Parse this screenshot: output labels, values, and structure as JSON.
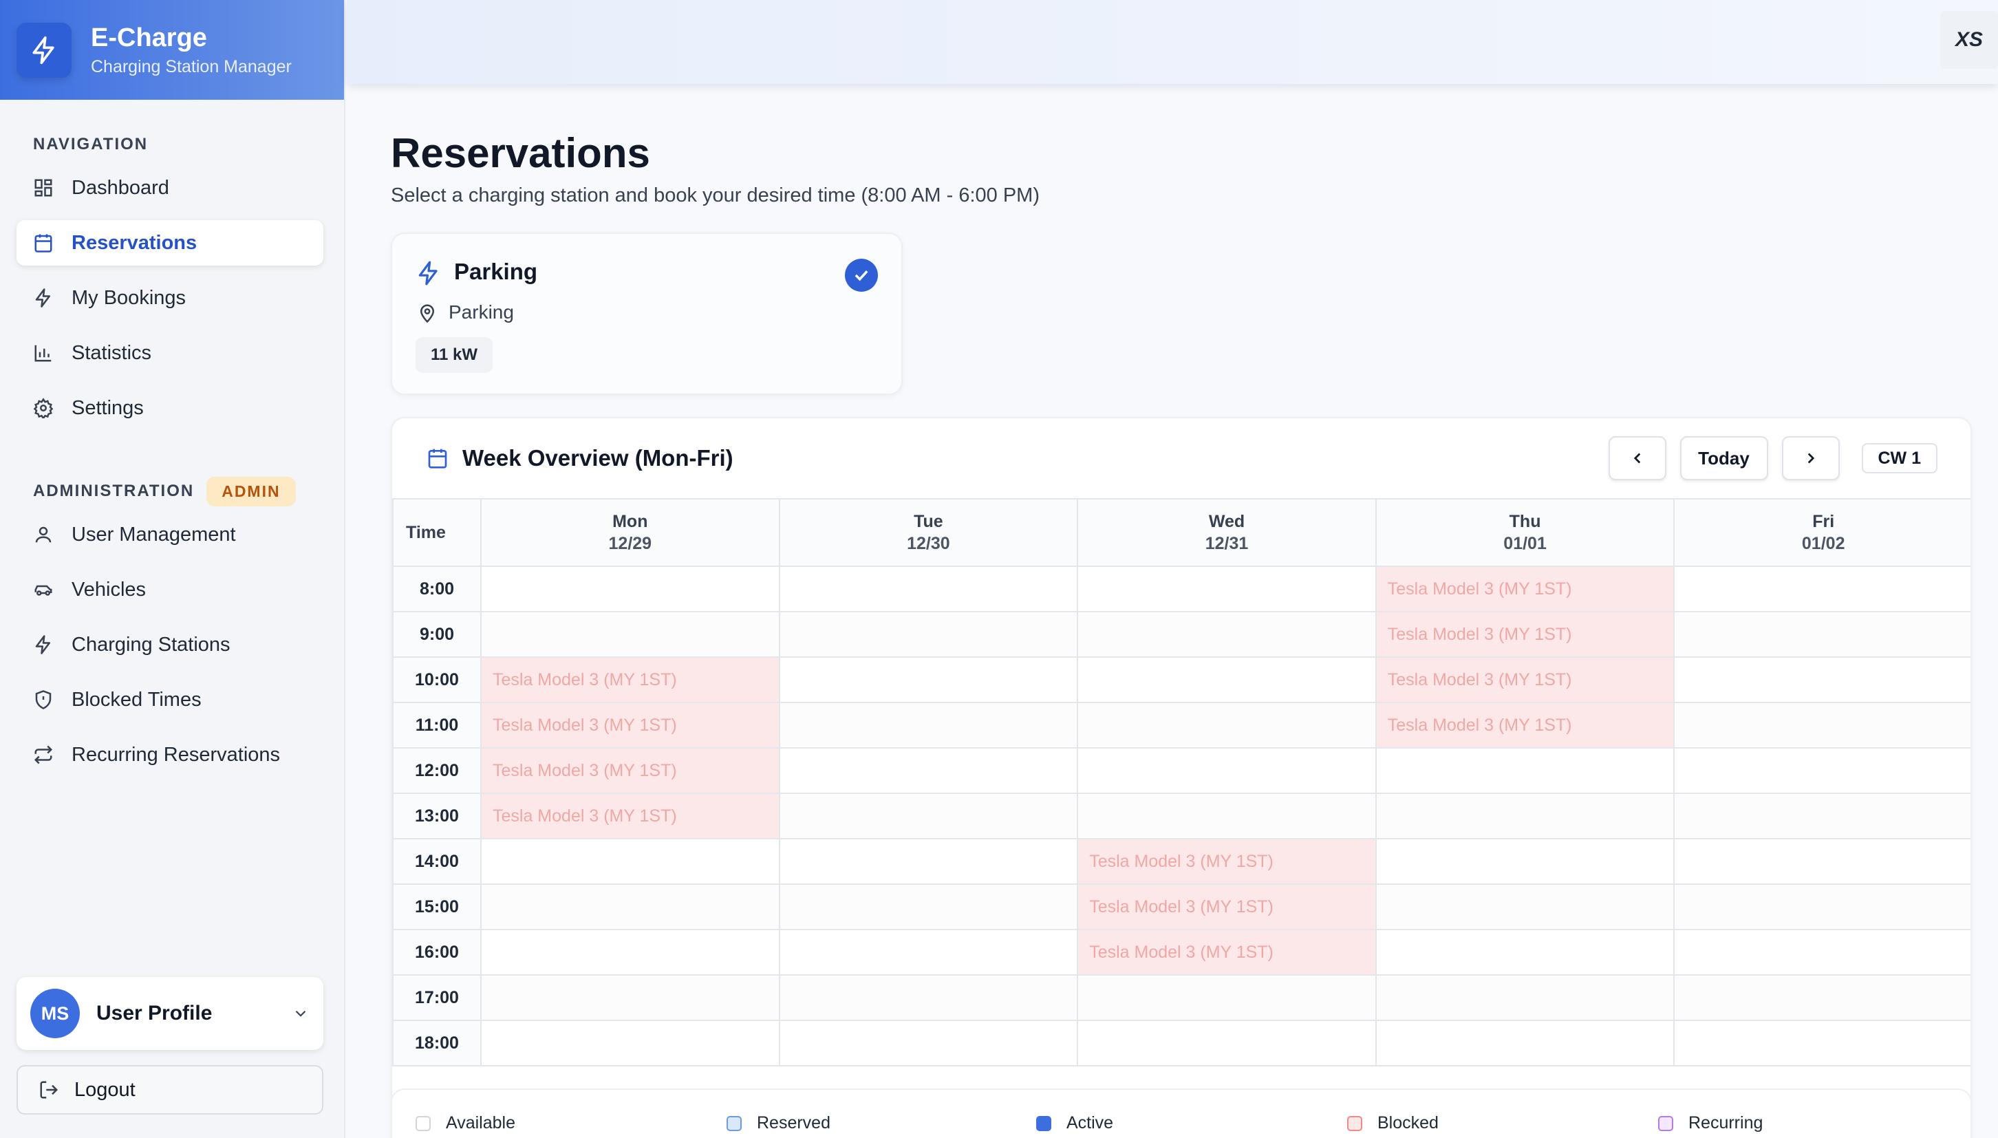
{
  "brand": {
    "title": "E-Charge",
    "subtitle": "Charging Station Manager"
  },
  "sidebar": {
    "nav_label": "NAVIGATION",
    "nav_items": [
      {
        "label": "Dashboard",
        "icon": "dashboard-icon"
      },
      {
        "label": "Reservations",
        "icon": "calendar-icon",
        "active": true
      },
      {
        "label": "My Bookings",
        "icon": "bolt-icon"
      },
      {
        "label": "Statistics",
        "icon": "bar-chart-icon"
      },
      {
        "label": "Settings",
        "icon": "gear-icon"
      }
    ],
    "admin_label": "ADMINISTRATION",
    "admin_badge": "ADMIN",
    "admin_items": [
      {
        "label": "User Management",
        "icon": "user-icon"
      },
      {
        "label": "Vehicles",
        "icon": "car-icon"
      },
      {
        "label": "Charging Stations",
        "icon": "bolt-icon"
      },
      {
        "label": "Blocked Times",
        "icon": "shield-icon"
      },
      {
        "label": "Recurring Reservations",
        "icon": "repeat-icon"
      }
    ],
    "profile": {
      "initials": "MS",
      "label": "User Profile"
    },
    "logout": "Logout"
  },
  "topbar": {
    "app_icon": "XS"
  },
  "page": {
    "title": "Reservations",
    "subtitle": "Select a charging station and book your desired time (8:00 AM - 6:00 PM)"
  },
  "station": {
    "name": "Parking",
    "location": "Parking",
    "power": "11 kW",
    "selected": true
  },
  "week": {
    "title": "Week Overview (Mon-Fri)",
    "today_label": "Today",
    "calendar_week": "CW 1",
    "time_header": "Time",
    "days": [
      {
        "name": "Mon",
        "date": "12/29"
      },
      {
        "name": "Tue",
        "date": "12/30"
      },
      {
        "name": "Wed",
        "date": "12/31"
      },
      {
        "name": "Thu",
        "date": "01/01"
      },
      {
        "name": "Fri",
        "date": "01/02"
      }
    ],
    "rows": [
      {
        "time": "8:00",
        "cells": [
          "",
          "",
          "",
          "Tesla Model 3 (MY 1ST)",
          ""
        ]
      },
      {
        "time": "9:00",
        "cells": [
          "",
          "",
          "",
          "Tesla Model 3 (MY 1ST)",
          ""
        ]
      },
      {
        "time": "10:00",
        "cells": [
          "Tesla Model 3 (MY 1ST)",
          "",
          "",
          "Tesla Model 3 (MY 1ST)",
          ""
        ]
      },
      {
        "time": "11:00",
        "cells": [
          "Tesla Model 3 (MY 1ST)",
          "",
          "",
          "Tesla Model 3 (MY 1ST)",
          ""
        ]
      },
      {
        "time": "12:00",
        "cells": [
          "Tesla Model 3 (MY 1ST)",
          "",
          "",
          "",
          ""
        ]
      },
      {
        "time": "13:00",
        "cells": [
          "Tesla Model 3 (MY 1ST)",
          "",
          "",
          "",
          ""
        ]
      },
      {
        "time": "14:00",
        "cells": [
          "",
          "",
          "Tesla Model 3 (MY 1ST)",
          "",
          ""
        ]
      },
      {
        "time": "15:00",
        "cells": [
          "",
          "",
          "Tesla Model 3 (MY 1ST)",
          "",
          ""
        ]
      },
      {
        "time": "16:00",
        "cells": [
          "",
          "",
          "Tesla Model 3 (MY 1ST)",
          "",
          ""
        ]
      },
      {
        "time": "17:00",
        "cells": [
          "",
          "",
          "",
          "",
          ""
        ]
      },
      {
        "time": "18:00",
        "cells": [
          "",
          "",
          "",
          "",
          ""
        ]
      }
    ]
  },
  "legend": [
    {
      "label": "Available",
      "color": "#ffffff",
      "border": "#d1d5db"
    },
    {
      "label": "Reserved",
      "color": "#dbe8fb",
      "border": "#6b9be0"
    },
    {
      "label": "Active",
      "color": "#3d6ee0",
      "border": "#3d6ee0"
    },
    {
      "label": "Blocked",
      "color": "#fde8e8",
      "border": "#f08a8a"
    },
    {
      "label": "Recurring",
      "color": "#f3e8ff",
      "border": "#b27ce8"
    }
  ],
  "colors": {
    "accent": "#2f5fd6",
    "booked_bg": "#fce8e8",
    "booked_text": "#efa8a6",
    "admin_badge_bg": "#fde9c4"
  }
}
